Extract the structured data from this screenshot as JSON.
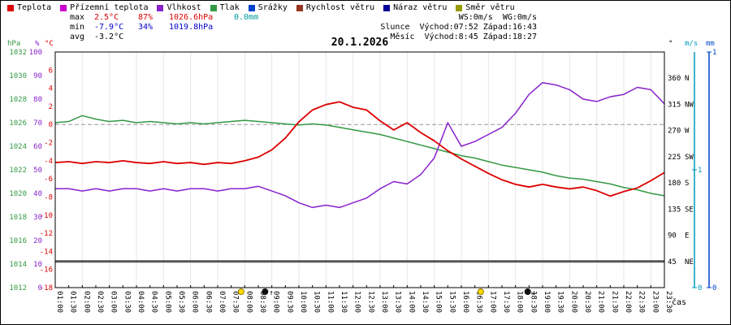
{
  "title": "20.1.2026",
  "legend": {
    "items": [
      {
        "id": "teplota",
        "label": "Teplota",
        "color": "#dd0000"
      },
      {
        "id": "prizemni-teplota",
        "label": "Přízemní teplota",
        "color": "#cc00cc"
      },
      {
        "id": "vlhkost",
        "label": "Vlhkost",
        "color": "#8822cc"
      },
      {
        "id": "tlak",
        "label": "Tlak",
        "color": "#339944"
      },
      {
        "id": "srazky",
        "label": "Srážky",
        "color": "#0044cc"
      },
      {
        "id": "rychlost-vetru",
        "label": "Rychlost větru",
        "color": "#993322"
      },
      {
        "id": "naraz-vetru",
        "label": "Náraz větru",
        "color": "#000099"
      },
      {
        "id": "smer-vetru",
        "label": "Směr větru",
        "color": "#999900"
      }
    ]
  },
  "stats": {
    "max": {
      "label": "max",
      "temp": "2.5°C",
      "humidity": "87%",
      "pressure": "1026.6hPa",
      "precip": "0.0mm"
    },
    "min": {
      "label": "min",
      "temp": "-7.9°C",
      "humidity": "34%",
      "pressure": "1019.8hPa"
    },
    "avg": {
      "label": "avg",
      "temp": "-3.2°C"
    }
  },
  "info": {
    "ws": "WS:0m/s",
    "wg": "WG:0m/s",
    "sun_label": "Slunce",
    "sun": "Východ:07:52  Západ:16:43",
    "moon_label": "Měsíc",
    "moon": "Východ:8:45  Západ:18:27"
  },
  "chart_data": {
    "type": "line",
    "title": "20.1.2026",
    "x_label": "čas",
    "x_times": [
      "01:00",
      "01:30",
      "02:00",
      "02:30",
      "03:00",
      "03:30",
      "04:00",
      "04:30",
      "05:00",
      "05:30",
      "06:00",
      "06:30",
      "07:00",
      "07:30",
      "08:00",
      "08:30",
      "09:00",
      "09:30",
      "10:00",
      "10:30",
      "11:00",
      "11:30",
      "12:00",
      "12:30",
      "13:00",
      "13:30",
      "14:00",
      "14:30",
      "15:00",
      "15:30",
      "16:00",
      "16:30",
      "17:00",
      "17:30",
      "18:00",
      "18:30",
      "19:00",
      "19:30",
      "20:00",
      "20:30",
      "21:00",
      "21:30",
      "22:00",
      "22:30",
      "23:00",
      "23:30"
    ],
    "axes": {
      "hpa": {
        "label": "hPa",
        "color": "#339944",
        "min": 1012,
        "max": 1032,
        "ticks": [
          1032,
          1030,
          1028,
          1026,
          1024,
          1022,
          1020,
          1018,
          1016,
          1014,
          1012
        ]
      },
      "pct": {
        "label": "%",
        "color": "#8822cc",
        "min": 0,
        "max": 100,
        "ticks": [
          100,
          90,
          80,
          70,
          60,
          50,
          40,
          30,
          20,
          10,
          0
        ]
      },
      "degc": {
        "label": "°C",
        "color": "#dd0000",
        "min": -18,
        "max": 8,
        "ticks": [
          6,
          4,
          2,
          0,
          -2,
          -4,
          -6,
          -8,
          -10,
          -12,
          -14,
          -16,
          -18
        ]
      },
      "deg": {
        "label": "°",
        "color": "#000000",
        "min": 0,
        "max": 405,
        "ticks": [
          {
            "v": 360,
            "c": "N"
          },
          {
            "v": 315,
            "c": "NW"
          },
          {
            "v": 270,
            "c": "W"
          },
          {
            "v": 225,
            "c": "SW"
          },
          {
            "v": 180,
            "c": "S"
          },
          {
            "v": 135,
            "c": "SE"
          },
          {
            "v": 90,
            "c": "E"
          },
          {
            "v": 45,
            "c": "NE"
          }
        ]
      },
      "ms": {
        "label": "m/s",
        "color": "#0099bb",
        "min": 0,
        "max": 2,
        "ticks": [
          1,
          0
        ]
      },
      "mm": {
        "label": "mm",
        "color": "#0044cc",
        "min": 0,
        "max": 1,
        "ticks": [
          1,
          0
        ]
      }
    },
    "zero_line": {
      "axis": "degc",
      "value": 0
    },
    "series": [
      {
        "id": "smer-vetru",
        "name": "Směr větru",
        "axis": "deg",
        "color": "#555555",
        "width": 3,
        "constant": 45,
        "draw": true
      },
      {
        "id": "rychlost-vetru",
        "name": "Rychlost větru",
        "axis": "ms",
        "color": "#993322",
        "constant": 0,
        "draw": false
      },
      {
        "id": "naraz-vetru",
        "name": "Náraz větru",
        "axis": "ms",
        "color": "#000099",
        "constant": 0,
        "draw": false
      },
      {
        "id": "srazky",
        "name": "Srážky",
        "axis": "mm",
        "color": "#0044cc",
        "constant": 0,
        "draw": false
      },
      {
        "id": "prizemni-teplota",
        "name": "Přízemní teplota",
        "axis": "degc",
        "color": "#cc00cc",
        "draw": false
      },
      {
        "id": "tlak",
        "name": "Tlak",
        "axis": "hpa",
        "color": "#339944",
        "width": 1.5,
        "values": [
          1026.0,
          1026.1,
          1026.6,
          1026.3,
          1026.1,
          1026.2,
          1026.0,
          1026.1,
          1026.0,
          1025.9,
          1026.0,
          1025.9,
          1026.0,
          1026.1,
          1026.2,
          1026.1,
          1026.0,
          1025.9,
          1025.8,
          1025.9,
          1025.8,
          1025.6,
          1025.4,
          1025.2,
          1025.0,
          1024.7,
          1024.4,
          1024.1,
          1023.8,
          1023.5,
          1023.2,
          1023.0,
          1022.7,
          1022.4,
          1022.2,
          1022.0,
          1021.8,
          1021.5,
          1021.3,
          1021.2,
          1021.0,
          1020.8,
          1020.5,
          1020.3,
          1020.0,
          1019.8
        ]
      },
      {
        "id": "vlhkost",
        "name": "Vlhkost",
        "axis": "pct",
        "color": "#8822cc",
        "width": 1.5,
        "values": [
          42,
          42,
          41,
          42,
          41,
          42,
          42,
          41,
          42,
          41,
          42,
          42,
          41,
          42,
          42,
          43,
          41,
          39,
          36,
          34,
          35,
          34,
          36,
          38,
          42,
          45,
          44,
          48,
          55,
          70,
          60,
          62,
          65,
          68,
          74,
          82,
          87,
          86,
          84,
          80,
          79,
          81,
          82,
          85,
          84,
          78
        ]
      },
      {
        "id": "teplota",
        "name": "Teplota",
        "axis": "degc",
        "color": "#dd0000",
        "width": 1.8,
        "values": [
          -4.2,
          -4.1,
          -4.3,
          -4.1,
          -4.2,
          -4.0,
          -4.2,
          -4.3,
          -4.1,
          -4.3,
          -4.2,
          -4.4,
          -4.2,
          -4.3,
          -4.0,
          -3.6,
          -2.8,
          -1.5,
          0.3,
          1.6,
          2.2,
          2.5,
          1.9,
          1.6,
          0.4,
          -0.6,
          0.2,
          -0.9,
          -1.8,
          -2.9,
          -3.8,
          -4.6,
          -5.4,
          -6.1,
          -6.6,
          -6.9,
          -6.6,
          -6.9,
          -7.1,
          -6.9,
          -7.3,
          -7.9,
          -7.4,
          -7.0,
          -6.2,
          -5.3
        ]
      }
    ],
    "events": [
      {
        "id": "sunrise",
        "time": "07:52",
        "minutes": 472,
        "color": "#ffdd00",
        "stroke": "#997700",
        "arrow": ""
      },
      {
        "id": "moonrise",
        "time": "8:45",
        "minutes": 525,
        "color": "#111111",
        "stroke": "#111111",
        "arrow": "↑"
      },
      {
        "id": "sunset",
        "time": "16:43",
        "minutes": 1003,
        "color": "#ffdd00",
        "stroke": "#997700",
        "arrow": ""
      },
      {
        "id": "moonset",
        "time": "18:27",
        "minutes": 1107,
        "color": "#111111",
        "stroke": "#111111",
        "arrow": "↓"
      }
    ]
  }
}
